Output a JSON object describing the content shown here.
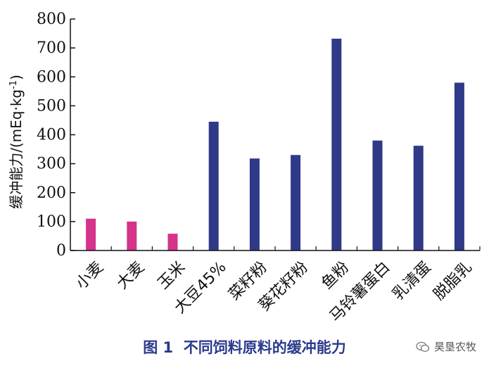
{
  "chart_data": {
    "type": "bar",
    "ylabel": "缓冲能力/(mEq·kg",
    "ylabel_sup": "-1",
    "ylabel_close": ")",
    "ylim": [
      0,
      800
    ],
    "yticks": [
      "0",
      "100",
      "200",
      "300",
      "400",
      "500",
      "600",
      "700",
      "800"
    ],
    "grid": false,
    "categories": [
      "小麦",
      "大麦",
      "玉米",
      "大豆45%",
      "菜籽粉",
      "葵花籽粉",
      "鱼粉",
      "马铃薯蛋白",
      "乳清蛋",
      "脱脂乳"
    ],
    "values": [
      110,
      100,
      58,
      445,
      318,
      330,
      732,
      380,
      362,
      580
    ],
    "colors": [
      "#d6338a",
      "#d6338a",
      "#d6338a",
      "#2e3a87",
      "#2e3a87",
      "#2e3a87",
      "#2e3a87",
      "#2e3a87",
      "#2e3a87",
      "#2e3a87"
    ]
  },
  "caption": {
    "prefix": "图 1",
    "title": "不同饲料原料的缓冲能力"
  },
  "watermark": {
    "text": "昊垦农牧",
    "icon": "wechat-icon"
  }
}
